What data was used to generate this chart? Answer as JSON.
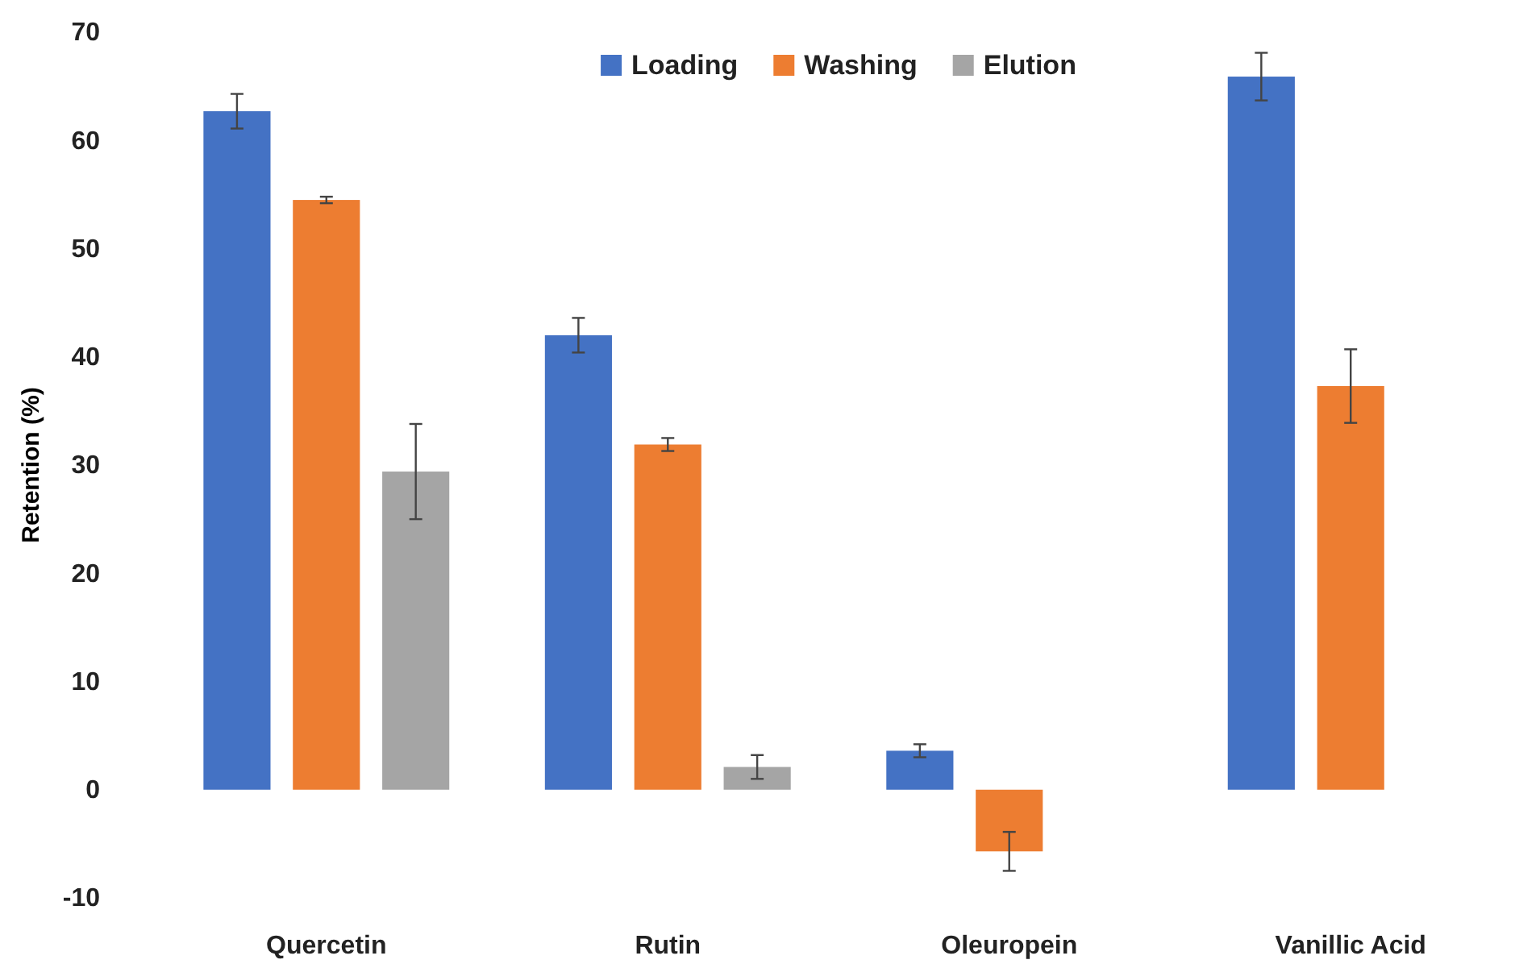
{
  "chart_data": {
    "type": "bar",
    "ylabel": "Retention (%)",
    "categories": [
      "Quercetin",
      "Rutin",
      "Oleuropein",
      "Vanillic Acid"
    ],
    "series": [
      {
        "name": "Loading",
        "color": "#4472c4",
        "values": [
          62.7,
          42.0,
          3.6,
          65.9
        ],
        "errors": [
          1.6,
          1.6,
          0.6,
          2.2
        ]
      },
      {
        "name": "Washing",
        "color": "#ed7d31",
        "values": [
          54.5,
          31.9,
          -5.7,
          37.3
        ],
        "errors": [
          0.3,
          0.6,
          1.8,
          3.4
        ]
      },
      {
        "name": "Elution",
        "color": "#a5a5a5",
        "values": [
          29.4,
          2.1,
          null,
          null
        ],
        "errors": [
          4.4,
          1.1,
          null,
          null
        ]
      }
    ],
    "ylim": [
      -10,
      70
    ],
    "yticks": [
      -10,
      0,
      10,
      20,
      30,
      40,
      50,
      60,
      70
    ],
    "grid": false,
    "legend": "top"
  }
}
